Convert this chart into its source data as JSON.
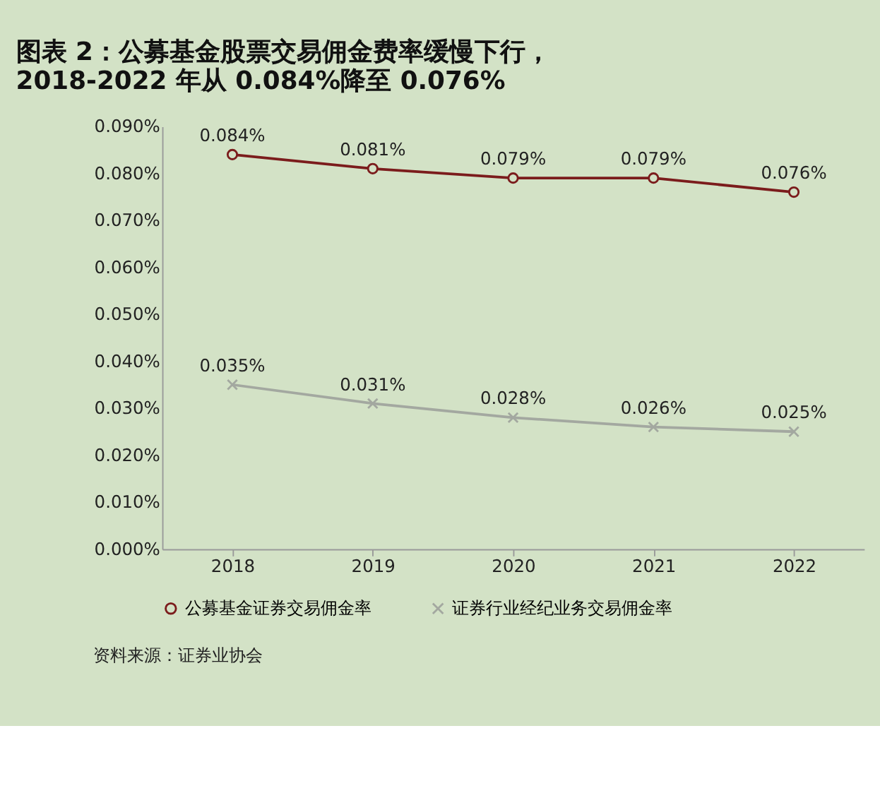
{
  "chart_data": {
    "type": "line",
    "title": "图表 2：公募基金股票交易佣金费率缓慢下行，",
    "subtitle": "2018-2022 年从 0.084%降至 0.076%",
    "categories": [
      "2018",
      "2019",
      "2020",
      "2021",
      "2022"
    ],
    "series": [
      {
        "name": "公募基金证券交易佣金率",
        "color": "#7b1c1c",
        "marker": "circle",
        "values": [
          0.084,
          0.081,
          0.079,
          0.079,
          0.076
        ],
        "value_labels": [
          "0.084%",
          "0.081%",
          "0.079%",
          "0.079%",
          "0.076%"
        ]
      },
      {
        "name": "证券行业经纪业务交易佣金率",
        "color": "#a3a8a0",
        "marker": "cross",
        "values": [
          0.035,
          0.031,
          0.028,
          0.026,
          0.025
        ],
        "value_labels": [
          "0.035%",
          "0.031%",
          "0.028%",
          "0.026%",
          "0.025%"
        ]
      }
    ],
    "ylim": [
      0,
      0.09
    ],
    "yticks": [
      {
        "value": 0,
        "label": "0.000%"
      },
      {
        "value": 0.01,
        "label": "0.010%"
      },
      {
        "value": 0.02,
        "label": "0.020%"
      },
      {
        "value": 0.03,
        "label": "0.030%"
      },
      {
        "value": 0.04,
        "label": "0.040%"
      },
      {
        "value": 0.05,
        "label": "0.050%"
      },
      {
        "value": 0.06,
        "label": "0.060%"
      },
      {
        "value": 0.07,
        "label": "0.070%"
      },
      {
        "value": 0.08,
        "label": "0.080%"
      },
      {
        "value": 0.09,
        "label": "0.090%"
      }
    ],
    "grid": false,
    "legend": "bottom",
    "annotations": [
      "资料来源：证券业协会"
    ]
  }
}
